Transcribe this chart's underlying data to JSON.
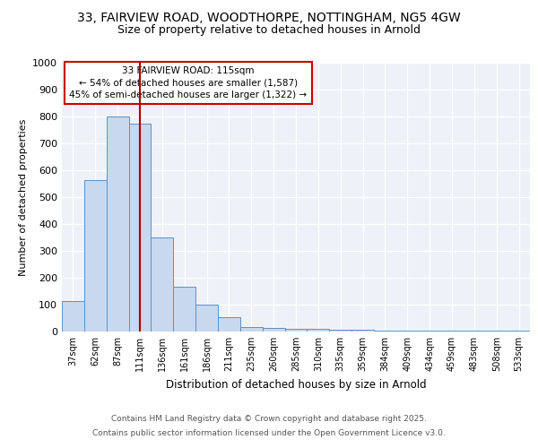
{
  "title_line1": "33, FAIRVIEW ROAD, WOODTHORPE, NOTTINGHAM, NG5 4GW",
  "title_line2": "Size of property relative to detached houses in Arnold",
  "xlabel": "Distribution of detached houses by size in Arnold",
  "ylabel": "Number of detached properties",
  "categories": [
    "37sqm",
    "62sqm",
    "87sqm",
    "111sqm",
    "136sqm",
    "161sqm",
    "186sqm",
    "211sqm",
    "235sqm",
    "260sqm",
    "285sqm",
    "310sqm",
    "335sqm",
    "359sqm",
    "384sqm",
    "409sqm",
    "434sqm",
    "459sqm",
    "483sqm",
    "508sqm",
    "533sqm"
  ],
  "values": [
    115,
    565,
    800,
    775,
    350,
    168,
    100,
    55,
    18,
    13,
    10,
    10,
    8,
    8,
    5,
    3,
    3,
    3,
    3,
    3,
    5
  ],
  "bar_color": "#c8d8ee",
  "bar_edge_color": "#6090c0",
  "property_line_x": 3,
  "property_label": "33 FAIRVIEW ROAD: 115sqm",
  "annotation_line1": "← 54% of detached houses are smaller (1,587)",
  "annotation_line2": "45% of semi-detached houses are larger (1,322) →",
  "annotation_box_color": "#ffffff",
  "annotation_box_edge": "#cc0000",
  "line_color": "#aa0000",
  "ylim": [
    0,
    1000
  ],
  "yticks": [
    0,
    100,
    200,
    300,
    400,
    500,
    600,
    700,
    800,
    900,
    1000
  ],
  "footer_line1": "Contains HM Land Registry data © Crown copyright and database right 2025.",
  "footer_line2": "Contains public sector information licensed under the Open Government Licence v3.0.",
  "bg_color": "#eef2f8",
  "fig_bg_color": "#ffffff",
  "grid_color": "#ffffff",
  "title1_fontsize": 10,
  "title2_fontsize": 9
}
